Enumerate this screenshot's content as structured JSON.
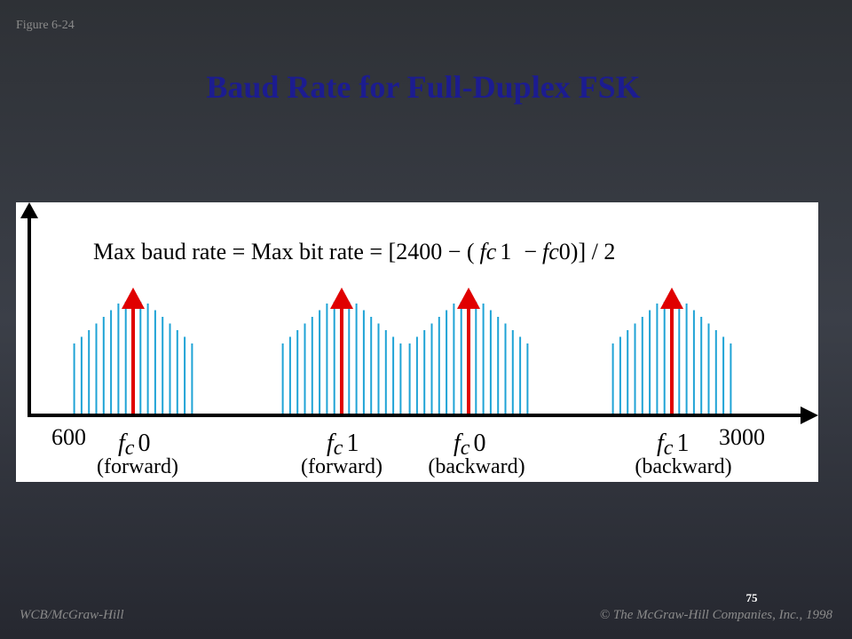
{
  "figure_label": "Figure 6-24",
  "title": "Baud Rate for Full-Duplex FSK",
  "formula": {
    "prefix": "Max baud rate = Max bit rate = [2400 − (",
    "term1": {
      "symbol": "f",
      "subscript": "c",
      "index": "1"
    },
    "minus": "−",
    "term2": {
      "symbol": "f",
      "subscript": "c",
      "index": "0"
    },
    "suffix": ")] / 2"
  },
  "axis_labels": {
    "start": "600",
    "end": "3000"
  },
  "carriers": [
    {
      "symbol": "f",
      "subscript": "c",
      "index": "0",
      "note": "(forward)"
    },
    {
      "symbol": "f",
      "subscript": "c",
      "index": "1",
      "note": "(forward)"
    },
    {
      "symbol": "f",
      "subscript": "c",
      "index": "0",
      "note": "(backward)"
    },
    {
      "symbol": "f",
      "subscript": "c",
      "index": "1",
      "note": "(backward)"
    }
  ],
  "page_number": "75",
  "footer": {
    "left": "WCB/McGraw-Hill",
    "right": "© The McGraw-Hill Companies, Inc., 1998"
  }
}
